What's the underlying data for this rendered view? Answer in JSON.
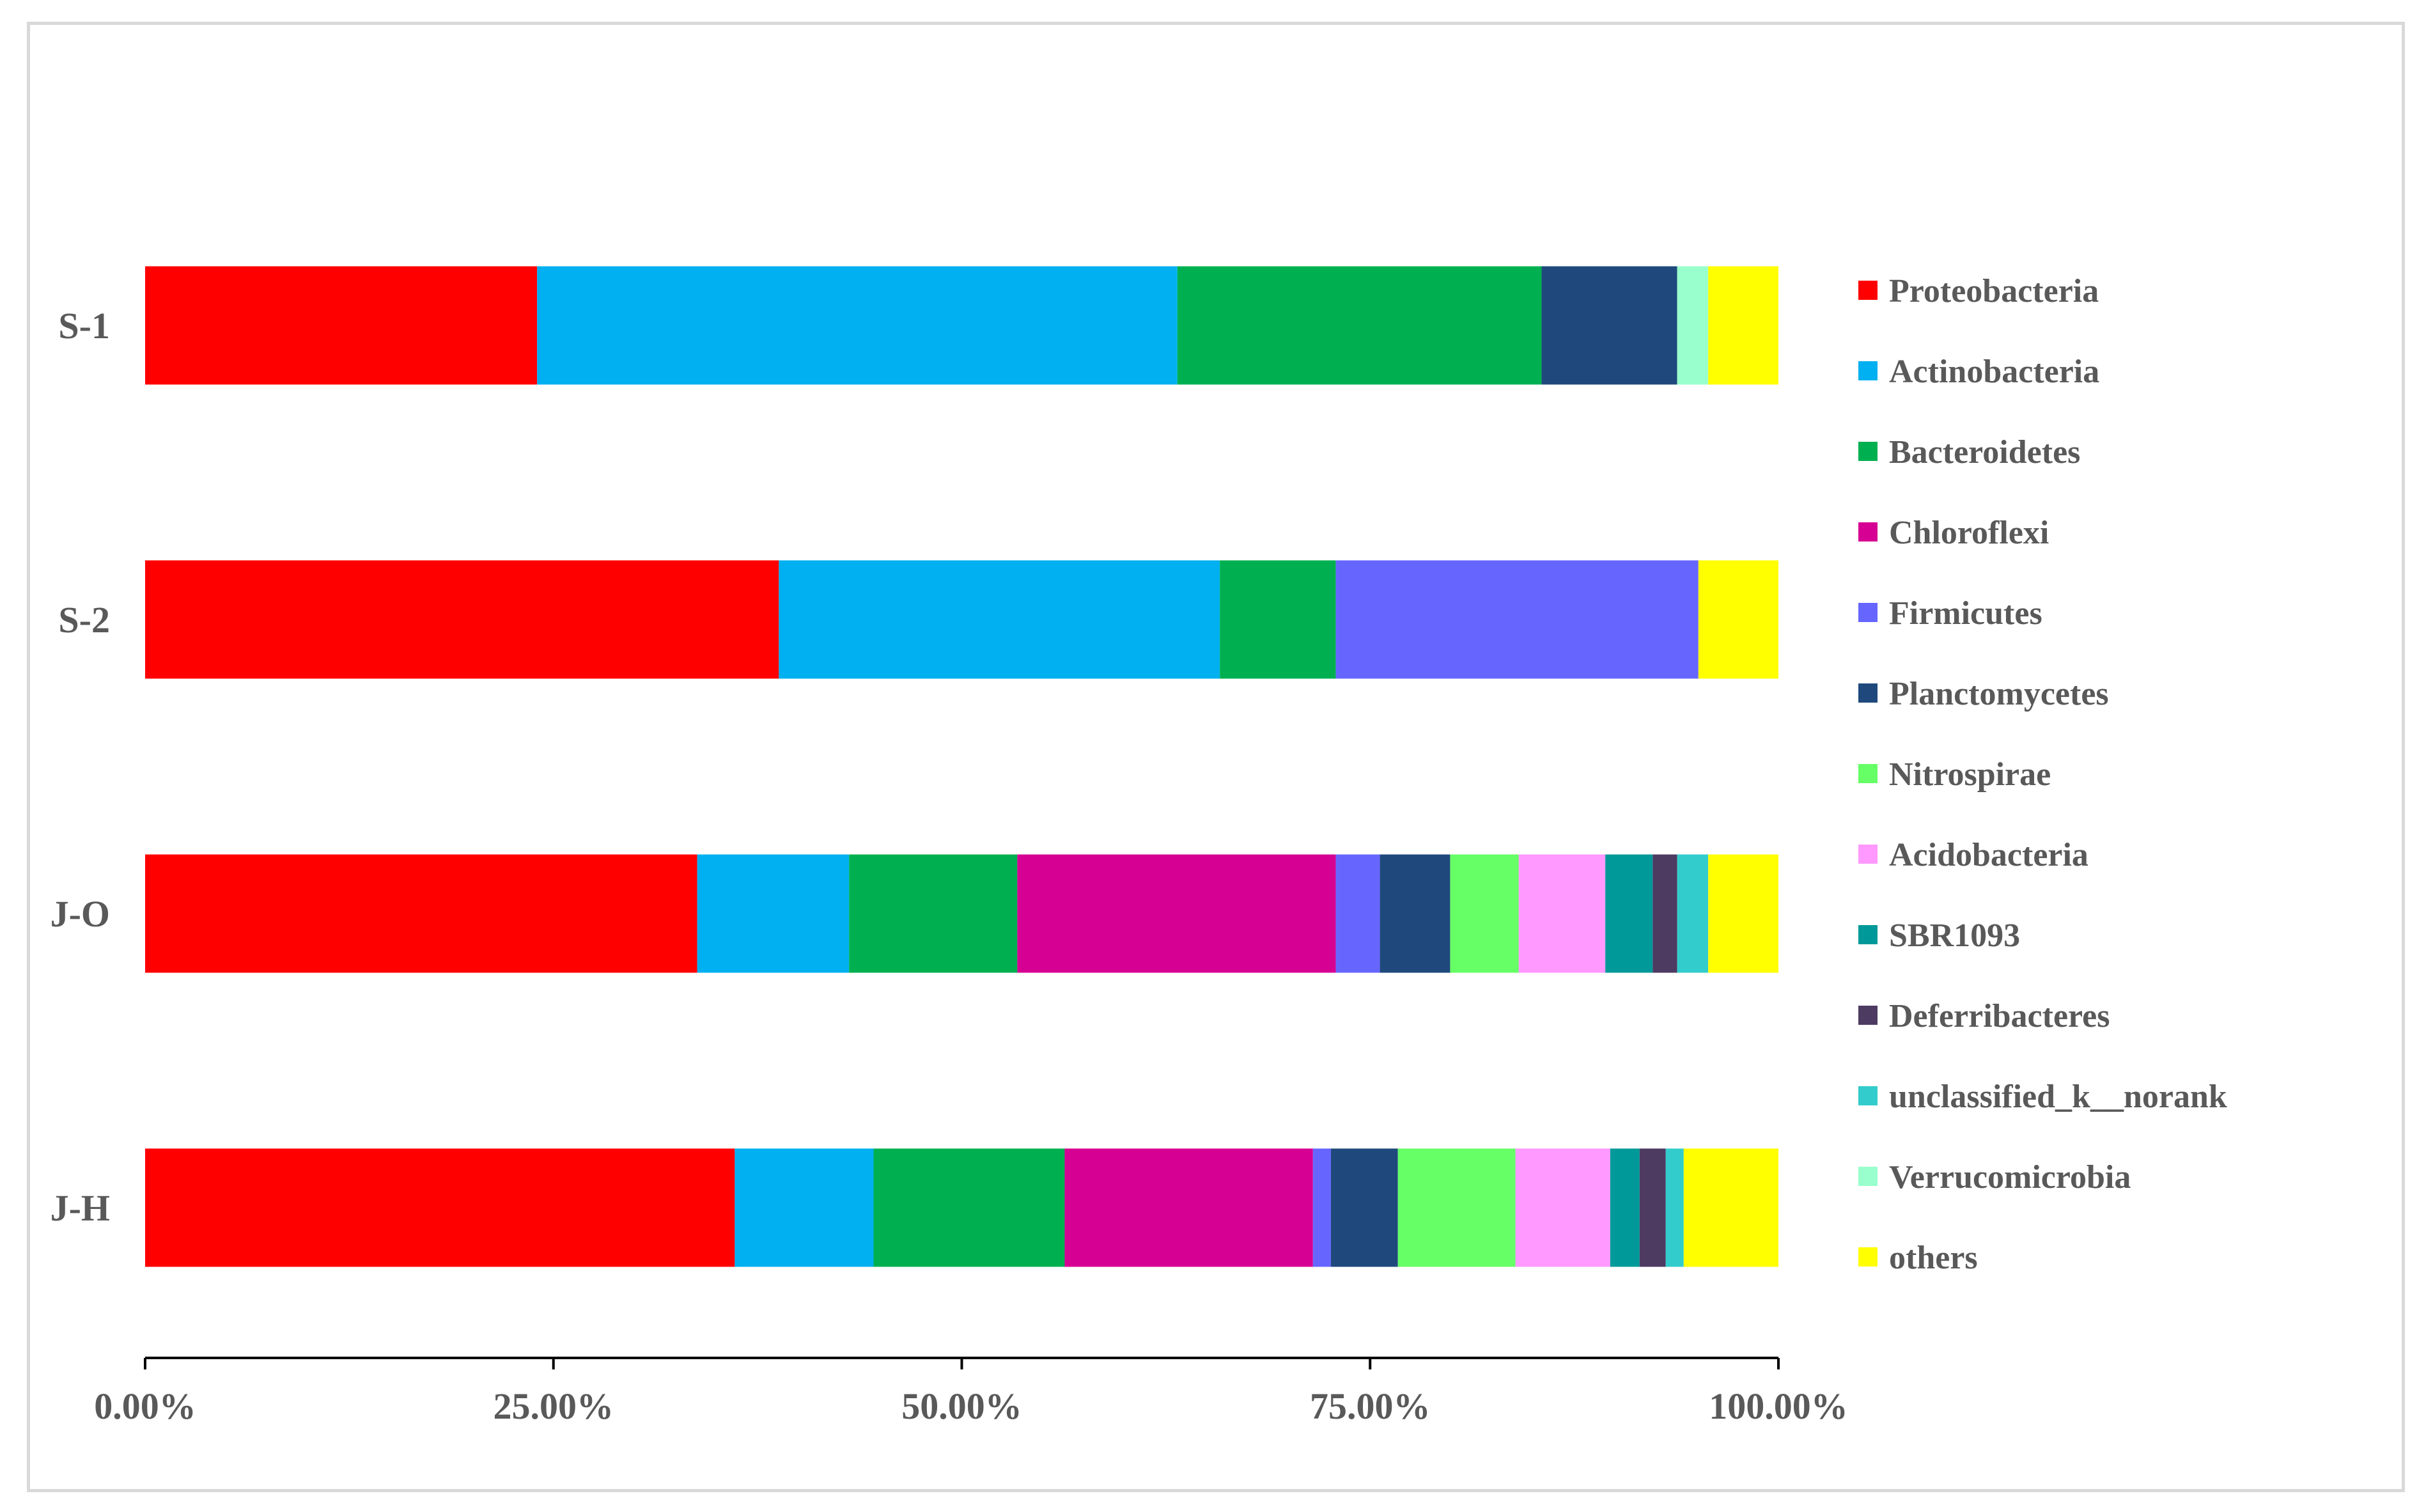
{
  "chart_data": {
    "type": "bar",
    "orientation": "horizontal",
    "stacked": true,
    "percent": true,
    "categories": [
      "S-1",
      "S-2",
      "J-O",
      "J-H"
    ],
    "xlim": [
      0,
      1
    ],
    "xticks": [
      "0.00%",
      "25.00%",
      "50.00%",
      "75.00%",
      "100.00%"
    ],
    "legend_position": "right",
    "grid": false,
    "series": [
      {
        "name": "Proteobacteria",
        "color": "#FF0000",
        "values": [
          0.24,
          0.388,
          0.338,
          0.361
        ]
      },
      {
        "name": "Actinobacteria",
        "color": "#00B0F0",
        "values": [
          0.392,
          0.27,
          0.093,
          0.085
        ]
      },
      {
        "name": "Bacteroidetes",
        "color": "#00B050",
        "values": [
          0.223,
          0.071,
          0.103,
          0.117
        ]
      },
      {
        "name": "Chloroflexi",
        "color": "#D60093",
        "values": [
          0.0,
          0.0,
          0.195,
          0.152
        ]
      },
      {
        "name": "Firmicutes",
        "color": "#6666FF",
        "values": [
          0.0,
          0.222,
          0.027,
          0.011
        ]
      },
      {
        "name": "Planctomycetes",
        "color": "#1F497D",
        "values": [
          0.083,
          0.0,
          0.043,
          0.041
        ]
      },
      {
        "name": "Nitrospirae",
        "color": "#66FF66",
        "values": [
          0.0,
          0.0,
          0.042,
          0.072
        ]
      },
      {
        "name": "Acidobacteria",
        "color": "#FF99FF",
        "values": [
          0.0,
          0.0,
          0.053,
          0.058
        ]
      },
      {
        "name": "SBR1093",
        "color": "#009999",
        "values": [
          0.0,
          0.0,
          0.029,
          0.018
        ]
      },
      {
        "name": "Deferribacteres",
        "color": "#4D3B62",
        "values": [
          0.0,
          0.0,
          0.015,
          0.016
        ]
      },
      {
        "name": "unclassified_k__norank",
        "color": "#33CCCC",
        "values": [
          0.0,
          0.0,
          0.019,
          0.011
        ]
      },
      {
        "name": "Verrucomicrobia",
        "color": "#99FFCC",
        "values": [
          0.019,
          0.0,
          0.0,
          0.0
        ]
      },
      {
        "name": "others",
        "color": "#FFFF00",
        "values": [
          0.043,
          0.049,
          0.043,
          0.058
        ]
      }
    ]
  }
}
